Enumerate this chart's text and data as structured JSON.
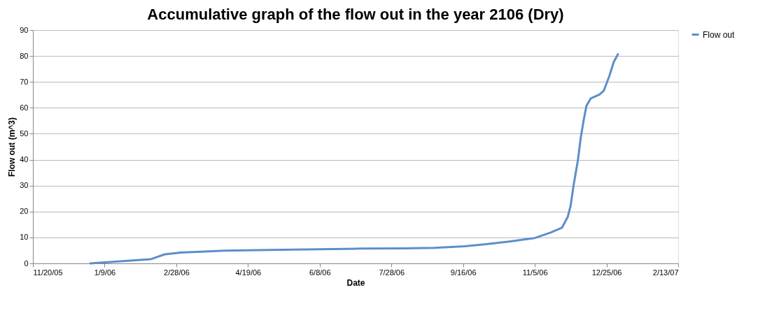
{
  "chart_data": {
    "type": "line",
    "title": "Accumulative graph of the flow out in the year 2106 (Dry)",
    "xlabel": "Date",
    "ylabel": "Flow out (m^3)",
    "x": [
      "2005-12-30",
      "2006-02-10",
      "2006-02-20",
      "2006-03-03",
      "2006-04-03",
      "2006-05-04",
      "2006-07-06",
      "2006-08-06",
      "2006-08-27",
      "2006-09-17",
      "2006-10-02",
      "2006-10-18",
      "2006-11-05",
      "2006-11-16",
      "2006-11-24",
      "2006-11-28",
      "2006-11-30",
      "2006-12-02",
      "2006-12-05",
      "2006-12-07",
      "2006-12-09",
      "2006-12-11",
      "2006-12-14",
      "2006-12-20",
      "2006-12-23",
      "2006-12-27",
      "2006-12-30",
      "2007-01-02"
    ],
    "series": [
      {
        "name": "Flow out",
        "color": "#5b8fc9",
        "values": [
          0,
          1.6,
          3.5,
          4.2,
          4.9,
          5.2,
          5.7,
          5.8,
          6.0,
          6.6,
          7.4,
          8.4,
          9.8,
          11.9,
          13.8,
          18.0,
          22.3,
          30.0,
          39.6,
          48.3,
          55.0,
          60.8,
          63.6,
          65.1,
          66.5,
          72.3,
          77.6,
          80.7
        ]
      }
    ],
    "xlim": [
      "2005-11-20",
      "2007-02-13"
    ],
    "xticks": [
      {
        "value": "2005-11-20",
        "label": "11/20/05"
      },
      {
        "value": "2006-01-09",
        "label": "1/9/06"
      },
      {
        "value": "2006-02-28",
        "label": "2/28/06"
      },
      {
        "value": "2006-04-19",
        "label": "4/19/06"
      },
      {
        "value": "2006-06-08",
        "label": "6/8/06"
      },
      {
        "value": "2006-07-28",
        "label": "7/28/06"
      },
      {
        "value": "2006-09-16",
        "label": "9/16/06"
      },
      {
        "value": "2006-11-05",
        "label": "11/5/06"
      },
      {
        "value": "2006-12-25",
        "label": "12/25/06"
      },
      {
        "value": "2007-02-13",
        "label": "2/13/07"
      }
    ],
    "ylim": [
      0,
      90
    ],
    "yticks": [
      0,
      10,
      20,
      30,
      40,
      50,
      60,
      70,
      80,
      90
    ],
    "grid": "y",
    "legend": "right",
    "marker": "none",
    "line_style": "solid"
  }
}
